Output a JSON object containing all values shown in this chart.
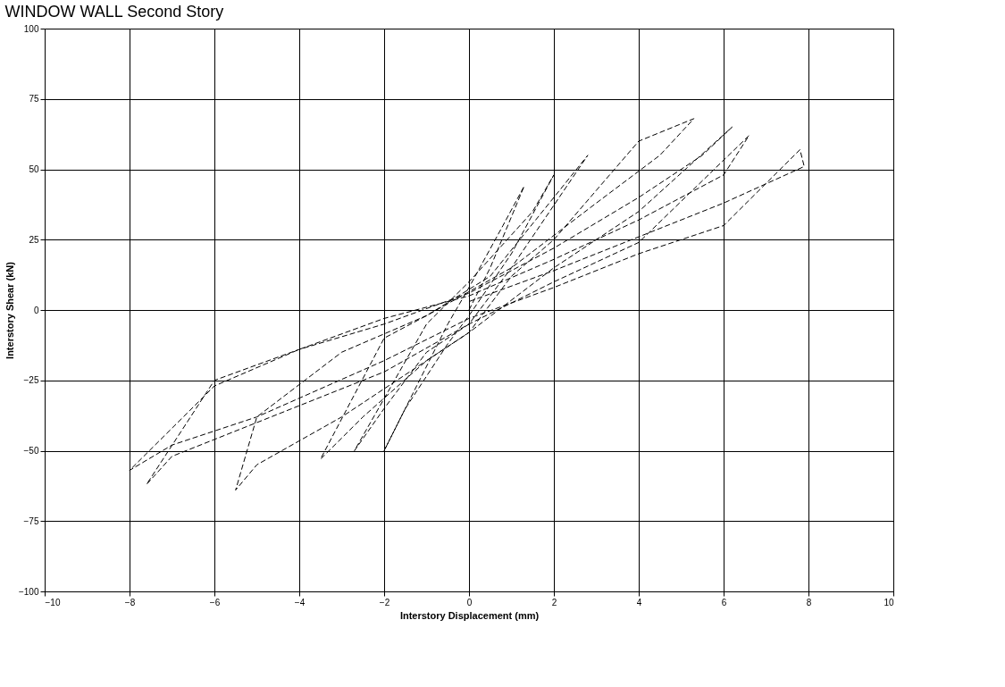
{
  "chart_data": {
    "type": "line",
    "title": "WINDOW WALL   Second Story",
    "xlabel": "Interstory Displacement (mm)",
    "ylabel": "Interstory Shear (kN)",
    "xlim": [
      -10,
      10
    ],
    "xticks": [
      -10,
      -8,
      -6,
      -4,
      -2,
      0,
      2,
      4,
      6,
      8,
      10
    ],
    "ylim": [
      -100,
      100
    ],
    "yticks": [
      -100,
      -75,
      -50,
      -25,
      0,
      25,
      50,
      75,
      100
    ],
    "grid": true,
    "line_style": "dashed",
    "marker": "none",
    "series": [
      {
        "color": "#000000",
        "x": [
          0,
          0.5,
          1.3,
          0.8,
          0,
          -0.5,
          -1,
          -2,
          -1.5,
          -0.5,
          0,
          1,
          2,
          1.5,
          0,
          -1,
          -2.7,
          -2,
          -1,
          0,
          1,
          2.8,
          2,
          0.5,
          -1,
          -2,
          -3.5,
          -2.5,
          -1,
          0,
          1,
          2,
          4,
          5.3,
          4.5,
          3,
          1,
          -1,
          -3,
          -5,
          -5.5,
          -5,
          -3,
          -1,
          0,
          2,
          4,
          6.2,
          5.5,
          4,
          2,
          0,
          -2,
          -4,
          -6,
          -7.6,
          -7,
          -5,
          -2,
          0,
          2,
          4,
          6.6,
          6,
          4,
          2,
          0,
          -2,
          -4,
          -6,
          -8,
          -7,
          -5,
          -2,
          0,
          2,
          4,
          6,
          7.8,
          7.9,
          6,
          4,
          2,
          0
        ],
        "values": [
          0,
          15,
          44,
          30,
          8,
          -5,
          -20,
          -50,
          -35,
          -12,
          -2,
          20,
          48,
          35,
          10,
          -5,
          -50,
          -35,
          -15,
          -5,
          15,
          55,
          40,
          12,
          -2,
          -10,
          -53,
          -38,
          -18,
          -8,
          12,
          25,
          60,
          68,
          55,
          38,
          15,
          -2,
          -15,
          -38,
          -64,
          -55,
          -38,
          -18,
          -8,
          15,
          35,
          65,
          55,
          40,
          22,
          6,
          -5,
          -14,
          -25,
          -62,
          -52,
          -40,
          -22,
          -5,
          10,
          24,
          62,
          48,
          32,
          18,
          5,
          -3,
          -14,
          -27,
          -57,
          -48,
          -38,
          -18,
          -3,
          8,
          20,
          30,
          57,
          51,
          38,
          26,
          14,
          3
        ]
      }
    ]
  }
}
